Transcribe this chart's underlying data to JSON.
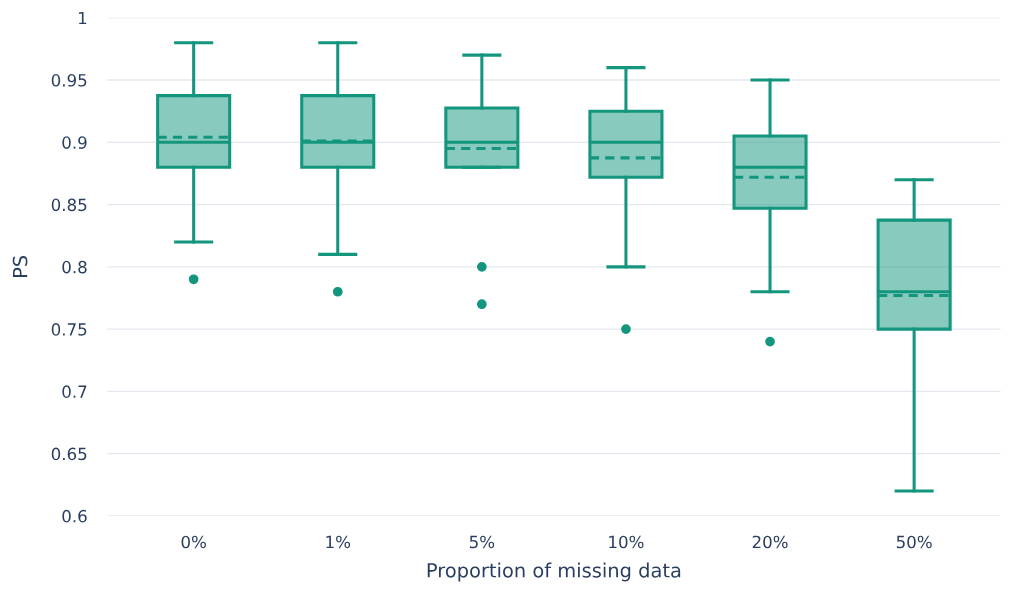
{
  "chart_data": {
    "type": "box",
    "xlabel": "Proportion of missing data",
    "ylabel": "PS",
    "categories": [
      "0%",
      "1%",
      "5%",
      "10%",
      "20%",
      "50%"
    ],
    "color": "#13967d",
    "boxes": [
      {
        "low": 0.82,
        "q1": 0.88,
        "median": 0.9,
        "q3": 0.9375,
        "high": 0.98,
        "mean": 0.904,
        "outliers": [
          0.79
        ]
      },
      {
        "low": 0.81,
        "q1": 0.88,
        "median": 0.9,
        "q3": 0.9375,
        "high": 0.98,
        "mean": 0.901,
        "outliers": [
          0.78
        ]
      },
      {
        "low": 0.88,
        "q1": 0.88,
        "median": 0.9,
        "q3": 0.9275,
        "high": 0.97,
        "mean": 0.895,
        "outliers": [
          0.8,
          0.77
        ]
      },
      {
        "low": 0.8,
        "q1": 0.872,
        "median": 0.9,
        "q3": 0.925,
        "high": 0.96,
        "mean": 0.8875,
        "outliers": [
          0.75
        ]
      },
      {
        "low": 0.78,
        "q1": 0.847,
        "median": 0.88,
        "q3": 0.905,
        "high": 0.95,
        "mean": 0.872,
        "outliers": [
          0.74
        ]
      },
      {
        "low": 0.62,
        "q1": 0.75,
        "median": 0.78,
        "q3": 0.8375,
        "high": 0.87,
        "mean": 0.777
      }
    ],
    "ylim": [
      0.6,
      1
    ],
    "yticks": [
      0.6,
      0.65,
      0.7,
      0.75,
      0.8,
      0.85,
      0.9,
      0.95,
      1
    ],
    "grid": "y"
  }
}
